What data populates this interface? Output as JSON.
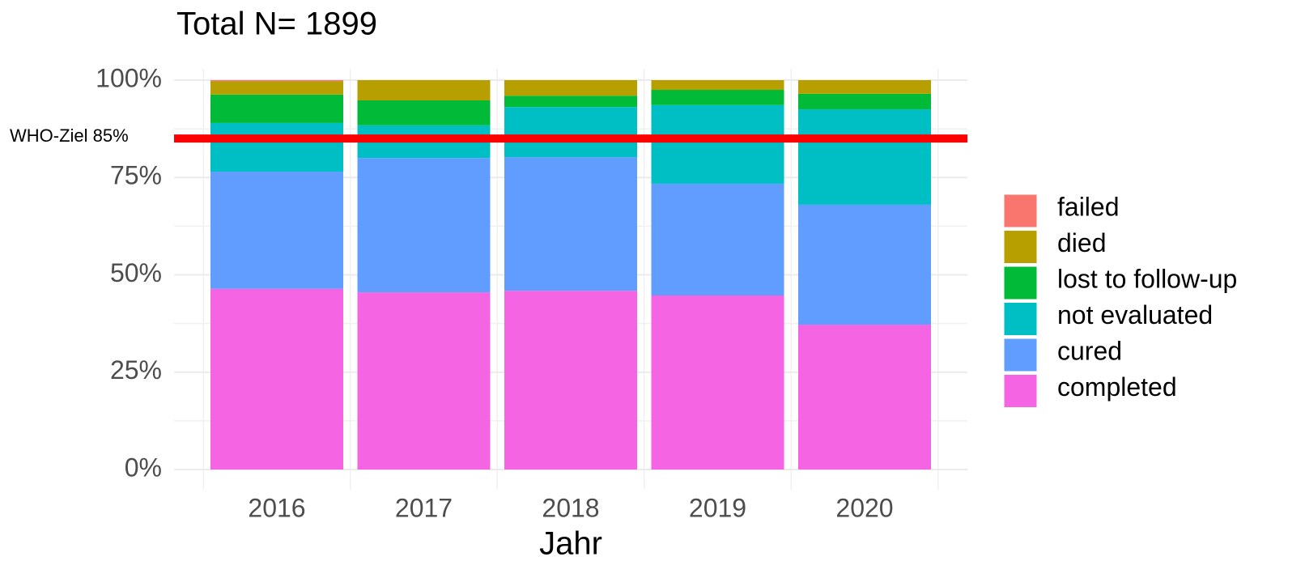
{
  "chart_data": {
    "type": "stacked_bar",
    "title": "Total N= 1899",
    "x_label": "Jahr",
    "categories": [
      "2016",
      "2017",
      "2018",
      "2019",
      "2020"
    ],
    "series": [
      {
        "name": "completed",
        "color": "#F564E3",
        "values": [
          46.4,
          45.5,
          45.9,
          44.7,
          37.2
        ]
      },
      {
        "name": "cured",
        "color": "#619CFF",
        "values": [
          30.1,
          34.5,
          34.3,
          28.7,
          30.8
        ]
      },
      {
        "name": "not evaluated",
        "color": "#00BFC4",
        "values": [
          12.5,
          8.4,
          12.9,
          20.2,
          24.5
        ]
      },
      {
        "name": "lost to follow-up",
        "color": "#00BA38",
        "values": [
          7.3,
          6.4,
          2.9,
          3.9,
          4.0
        ]
      },
      {
        "name": "died",
        "color": "#B79F00",
        "values": [
          3.4,
          5.2,
          4.0,
          2.5,
          3.5
        ]
      },
      {
        "name": "failed",
        "color": "#F8766D",
        "values": [
          0.3,
          0,
          0,
          0,
          0
        ]
      }
    ],
    "ylim": [
      0,
      100
    ],
    "yticks": [
      {
        "value": 0,
        "label": "0%"
      },
      {
        "value": 25,
        "label": "25%"
      },
      {
        "value": 50,
        "label": "50%"
      },
      {
        "value": 75,
        "label": "75%"
      },
      {
        "value": 100,
        "label": "100%"
      }
    ],
    "yminorticks": [
      12.5,
      37.5,
      62.5,
      87.5
    ],
    "grid": true,
    "legend": "right",
    "reference_line": {
      "value": 85,
      "label": "WHO-Ziel 85%",
      "color": "#FF0000"
    }
  }
}
